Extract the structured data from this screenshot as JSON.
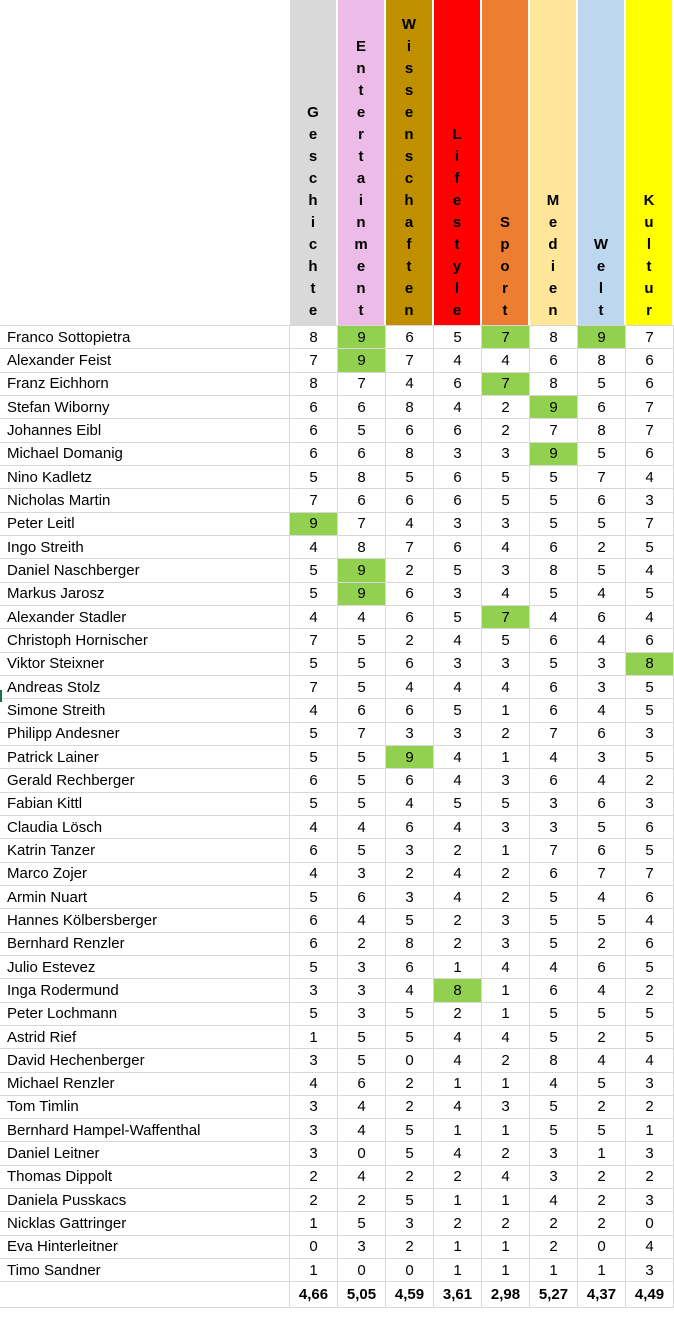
{
  "table": {
    "highlight_color": "#92d050",
    "grid_border_color": "#d8d8d8",
    "columns": [
      {
        "label": "Geschichte",
        "color": "#d9d9d9"
      },
      {
        "label": "Entertainment",
        "color": "#edbbe7"
      },
      {
        "label": "Wissenschaften",
        "color": "#bf8f00"
      },
      {
        "label": "Lifestyle",
        "color": "#ff0000"
      },
      {
        "label": "Sport",
        "color": "#ed7d31"
      },
      {
        "label": "Medien",
        "color": "#ffe699"
      },
      {
        "label": "Welt",
        "color": "#bdd7ee"
      },
      {
        "label": "Kultur",
        "color": "#ffff00"
      }
    ],
    "rows": [
      {
        "name": "Franco Sottopietra",
        "values": [
          8,
          9,
          6,
          5,
          7,
          8,
          9,
          7
        ],
        "highlights": [
          1,
          4,
          6
        ]
      },
      {
        "name": "Alexander Feist",
        "values": [
          7,
          9,
          7,
          4,
          4,
          6,
          8,
          6
        ],
        "highlights": [
          1
        ]
      },
      {
        "name": "Franz Eichhorn",
        "values": [
          8,
          7,
          4,
          6,
          7,
          8,
          5,
          6
        ],
        "highlights": [
          4
        ]
      },
      {
        "name": "Stefan Wiborny",
        "values": [
          6,
          6,
          8,
          4,
          2,
          9,
          6,
          7
        ],
        "highlights": [
          5
        ]
      },
      {
        "name": "Johannes Eibl",
        "values": [
          6,
          5,
          6,
          6,
          2,
          7,
          8,
          7
        ],
        "highlights": []
      },
      {
        "name": "Michael Domanig",
        "values": [
          6,
          6,
          8,
          3,
          3,
          9,
          5,
          6
        ],
        "highlights": [
          5
        ]
      },
      {
        "name": "Nino Kadletz",
        "values": [
          5,
          8,
          5,
          6,
          5,
          5,
          7,
          4
        ],
        "highlights": []
      },
      {
        "name": "Nicholas Martin",
        "values": [
          7,
          6,
          6,
          6,
          5,
          5,
          6,
          3
        ],
        "highlights": []
      },
      {
        "name": "Peter Leitl",
        "values": [
          9,
          7,
          4,
          3,
          3,
          5,
          5,
          7
        ],
        "highlights": [
          0
        ]
      },
      {
        "name": "Ingo Streith",
        "values": [
          4,
          8,
          7,
          6,
          4,
          6,
          2,
          5
        ],
        "highlights": []
      },
      {
        "name": "Daniel Naschberger",
        "values": [
          5,
          9,
          2,
          5,
          3,
          8,
          5,
          4
        ],
        "highlights": [
          1
        ]
      },
      {
        "name": "Markus Jarosz",
        "values": [
          5,
          9,
          6,
          3,
          4,
          5,
          4,
          5
        ],
        "highlights": [
          1
        ]
      },
      {
        "name": "Alexander Stadler",
        "values": [
          4,
          4,
          6,
          5,
          7,
          4,
          6,
          4
        ],
        "highlights": [
          4
        ]
      },
      {
        "name": "Christoph Hornischer",
        "values": [
          7,
          5,
          2,
          4,
          5,
          6,
          4,
          6
        ],
        "highlights": []
      },
      {
        "name": "Viktor Steixner",
        "values": [
          5,
          5,
          6,
          3,
          3,
          5,
          3,
          8
        ],
        "highlights": [
          7
        ]
      },
      {
        "name": "Andreas Stolz",
        "values": [
          7,
          5,
          4,
          4,
          4,
          6,
          3,
          5
        ],
        "highlights": []
      },
      {
        "name": "Simone Streith",
        "values": [
          4,
          6,
          6,
          5,
          1,
          6,
          4,
          5
        ],
        "highlights": []
      },
      {
        "name": "Philipp Andesner",
        "values": [
          5,
          7,
          3,
          3,
          2,
          7,
          6,
          3
        ],
        "highlights": []
      },
      {
        "name": "Patrick Lainer",
        "values": [
          5,
          5,
          9,
          4,
          1,
          4,
          3,
          5
        ],
        "highlights": [
          2
        ]
      },
      {
        "name": "Gerald Rechberger",
        "values": [
          6,
          5,
          6,
          4,
          3,
          6,
          4,
          2
        ],
        "highlights": []
      },
      {
        "name": "Fabian Kittl",
        "values": [
          5,
          5,
          4,
          5,
          5,
          3,
          6,
          3
        ],
        "highlights": []
      },
      {
        "name": "Claudia Lösch",
        "values": [
          4,
          4,
          6,
          4,
          3,
          3,
          5,
          6
        ],
        "highlights": []
      },
      {
        "name": "Katrin Tanzer",
        "values": [
          6,
          5,
          3,
          2,
          1,
          7,
          6,
          5
        ],
        "highlights": []
      },
      {
        "name": "Marco Zojer",
        "values": [
          4,
          3,
          2,
          4,
          2,
          6,
          7,
          7
        ],
        "highlights": []
      },
      {
        "name": "Armin Nuart",
        "values": [
          5,
          6,
          3,
          4,
          2,
          5,
          4,
          6
        ],
        "highlights": []
      },
      {
        "name": "Hannes Kölbersberger",
        "values": [
          6,
          4,
          5,
          2,
          3,
          5,
          5,
          4
        ],
        "highlights": []
      },
      {
        "name": "Bernhard Renzler",
        "values": [
          6,
          2,
          8,
          2,
          3,
          5,
          2,
          6
        ],
        "highlights": []
      },
      {
        "name": "Julio Estevez",
        "values": [
          5,
          3,
          6,
          1,
          4,
          4,
          6,
          5
        ],
        "highlights": []
      },
      {
        "name": "Inga Rodermund",
        "values": [
          3,
          3,
          4,
          8,
          1,
          6,
          4,
          2
        ],
        "highlights": [
          3
        ]
      },
      {
        "name": "Peter Lochmann",
        "values": [
          5,
          3,
          5,
          2,
          1,
          5,
          5,
          5
        ],
        "highlights": []
      },
      {
        "name": "Astrid Rief",
        "values": [
          1,
          5,
          5,
          4,
          4,
          5,
          2,
          5
        ],
        "highlights": []
      },
      {
        "name": "David Hechenberger",
        "values": [
          3,
          5,
          0,
          4,
          2,
          8,
          4,
          4
        ],
        "highlights": []
      },
      {
        "name": "Michael Renzler",
        "values": [
          4,
          6,
          2,
          1,
          1,
          4,
          5,
          3
        ],
        "highlights": []
      },
      {
        "name": "Tom Timlin",
        "values": [
          3,
          4,
          2,
          4,
          3,
          5,
          2,
          2
        ],
        "highlights": []
      },
      {
        "name": "Bernhard Hampel-Waffenthal",
        "values": [
          3,
          4,
          5,
          1,
          1,
          5,
          5,
          1
        ],
        "highlights": []
      },
      {
        "name": "Daniel Leitner",
        "values": [
          3,
          0,
          5,
          4,
          2,
          3,
          1,
          3
        ],
        "highlights": []
      },
      {
        "name": "Thomas Dippolt",
        "values": [
          2,
          4,
          2,
          2,
          4,
          3,
          2,
          2
        ],
        "highlights": []
      },
      {
        "name": "Daniela Pusskacs",
        "values": [
          2,
          2,
          5,
          1,
          1,
          4,
          2,
          3
        ],
        "highlights": []
      },
      {
        "name": "Nicklas Gattringer",
        "values": [
          1,
          5,
          3,
          2,
          2,
          2,
          2,
          0
        ],
        "highlights": []
      },
      {
        "name": "Eva Hinterleitner",
        "values": [
          0,
          3,
          2,
          1,
          1,
          2,
          0,
          4
        ],
        "highlights": []
      },
      {
        "name": "Timo Sandner",
        "values": [
          1,
          0,
          0,
          1,
          1,
          1,
          1,
          3
        ],
        "highlights": []
      }
    ],
    "averages": [
      "4,66",
      "5,05",
      "4,59",
      "3,61",
      "2,98",
      "5,27",
      "4,37",
      "4,49"
    ]
  }
}
